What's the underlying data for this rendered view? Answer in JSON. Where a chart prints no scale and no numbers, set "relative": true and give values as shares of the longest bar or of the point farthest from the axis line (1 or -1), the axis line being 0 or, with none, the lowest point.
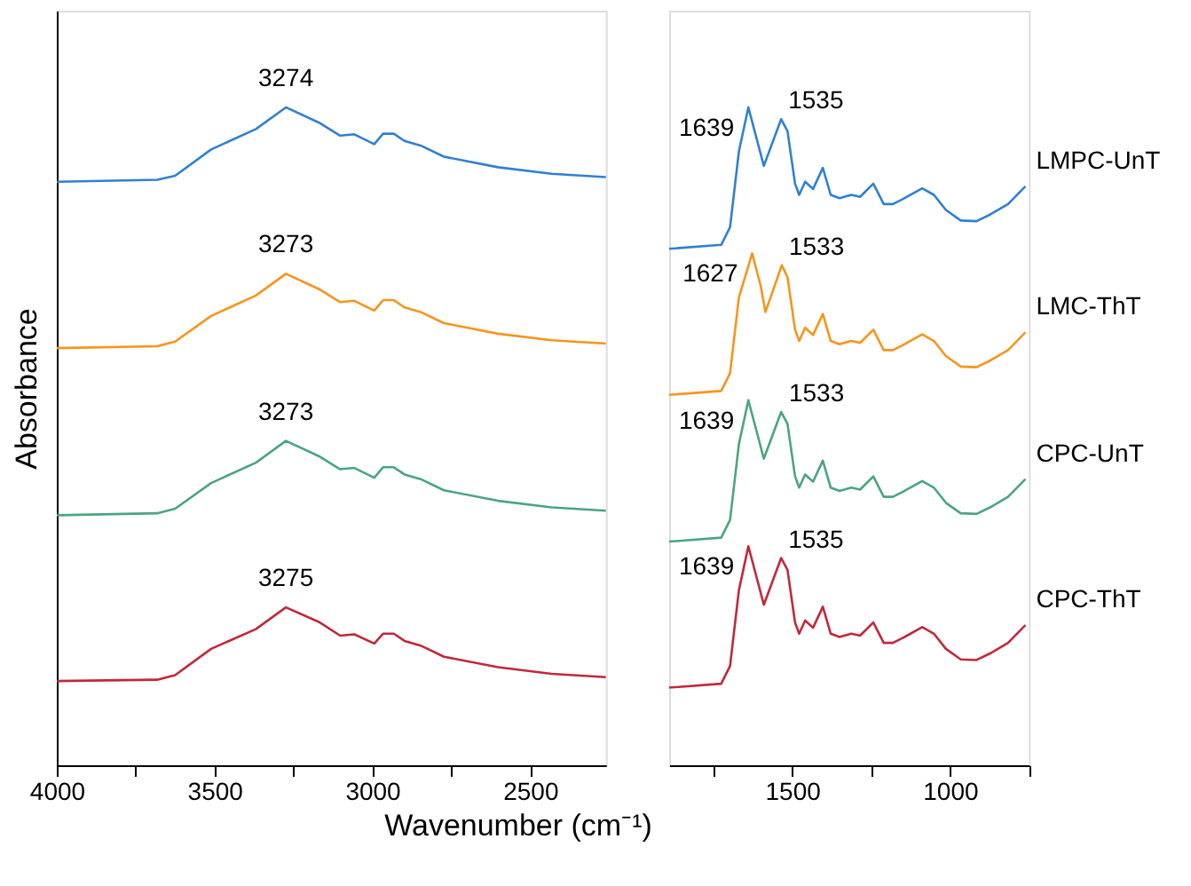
{
  "chart_data": [
    {
      "type": "line",
      "relative": true,
      "xlabel": "Wavenumber (cm⁻¹)",
      "ylabel": "Absorbance",
      "x": [
        4000,
        3682,
        3625,
        3511,
        3369,
        3274,
        3170,
        3102,
        3057,
        2994,
        2966,
        2932,
        2898,
        2847,
        2773,
        2602,
        2432,
        2260
      ],
      "xlim": [
        4000,
        2260
      ],
      "xticks": [
        4000,
        {
          "value": 3750,
          "label": null
        },
        3500,
        {
          "value": 3250,
          "label": null
        },
        3000,
        {
          "value": 2750,
          "label": null
        },
        2500
      ],
      "grid": false,
      "legend": false,
      "marker": "none",
      "line_style": "solid",
      "series": [
        {
          "color": "#2f80d1",
          "values": [
            0.887,
            0.89,
            0.896,
            0.936,
            0.967,
            1.0,
            0.977,
            0.957,
            0.959,
            0.944,
            0.96,
            0.96,
            0.949,
            0.942,
            0.925,
            0.909,
            0.899,
            0.894
          ]
        },
        {
          "color": "#f7941d",
          "values": [
            0.634,
            0.637,
            0.644,
            0.683,
            0.714,
            0.747,
            0.724,
            0.704,
            0.706,
            0.691,
            0.707,
            0.707,
            0.696,
            0.689,
            0.672,
            0.656,
            0.646,
            0.641
          ]
        },
        {
          "color": "#4aa57f",
          "values": [
            0.38,
            0.383,
            0.39,
            0.429,
            0.46,
            0.493,
            0.47,
            0.45,
            0.452,
            0.437,
            0.453,
            0.453,
            0.442,
            0.435,
            0.418,
            0.402,
            0.392,
            0.387
          ]
        },
        {
          "color": "#c0283c",
          "values": [
            0.128,
            0.13,
            0.137,
            0.177,
            0.207,
            0.24,
            0.218,
            0.197,
            0.199,
            0.185,
            0.2,
            0.2,
            0.189,
            0.182,
            0.165,
            0.149,
            0.139,
            0.134
          ]
        }
      ],
      "annotations": [
        {
          "text": "3274",
          "x": 3274,
          "y": 1.0
        },
        {
          "text": "3273",
          "x": 3274,
          "y": 0.747
        },
        {
          "text": "3273",
          "x": 3274,
          "y": 0.493
        },
        {
          "text": "3275",
          "x": 3274,
          "y": 0.24
        }
      ]
    },
    {
      "type": "line",
      "relative": true,
      "x": [
        1890,
        1725,
        1697,
        1669,
        1639,
        1612,
        1590,
        1566,
        1535,
        1515,
        1491,
        1478,
        1459,
        1434,
        1403,
        1378,
        1350,
        1313,
        1285,
        1243,
        1210,
        1181,
        1144,
        1088,
        1051,
        1013,
        966,
        916,
        873,
        816,
        761
      ],
      "xlim": [
        1890,
        750
      ],
      "xticks": [
        {
          "value": 1750,
          "label": null
        },
        1500,
        {
          "value": 1250,
          "label": null
        },
        1000,
        {
          "value": 750,
          "label": null
        }
      ],
      "grid": false,
      "legend": false,
      "marker": "none",
      "line_style": "solid",
      "series": [
        {
          "name": "LMPC-UnT",
          "color": "#2f80d1",
          "values": [
            0.785,
            0.791,
            0.818,
            0.933,
            1.0,
            0.951,
            0.911,
            0.942,
            0.982,
            0.964,
            0.884,
            0.867,
            0.887,
            0.876,
            0.908,
            0.867,
            0.862,
            0.867,
            0.864,
            0.884,
            0.853,
            0.853,
            0.862,
            0.877,
            0.867,
            0.844,
            0.828,
            0.827,
            0.837,
            0.853,
            0.88
          ]
        },
        {
          "name": "LMC-ThT",
          "color": "#f7941d",
          "x": [
            1890,
            1725,
            1697,
            1669,
            1627,
            1600,
            1585,
            1562,
            1533,
            1515,
            1491,
            1478,
            1459,
            1434,
            1403,
            1378,
            1350,
            1313,
            1285,
            1243,
            1210,
            1181,
            1144,
            1088,
            1051,
            1013,
            966,
            916,
            873,
            816,
            761
          ],
          "values": [
            0.563,
            0.569,
            0.596,
            0.711,
            0.778,
            0.729,
            0.689,
            0.72,
            0.76,
            0.742,
            0.662,
            0.645,
            0.665,
            0.654,
            0.686,
            0.645,
            0.64,
            0.645,
            0.642,
            0.662,
            0.631,
            0.631,
            0.64,
            0.655,
            0.645,
            0.622,
            0.606,
            0.605,
            0.615,
            0.631,
            0.658
          ]
        },
        {
          "name": "CPC-UnT",
          "color": "#4aa57f",
          "values": [
            0.34,
            0.346,
            0.373,
            0.488,
            0.555,
            0.506,
            0.466,
            0.497,
            0.537,
            0.519,
            0.439,
            0.422,
            0.442,
            0.431,
            0.463,
            0.422,
            0.417,
            0.422,
            0.419,
            0.439,
            0.408,
            0.408,
            0.417,
            0.432,
            0.422,
            0.399,
            0.383,
            0.382,
            0.392,
            0.408,
            0.435
          ]
        },
        {
          "name": "CPC-ThT",
          "color": "#c0283c",
          "values": [
            0.118,
            0.124,
            0.151,
            0.266,
            0.333,
            0.284,
            0.244,
            0.275,
            0.315,
            0.297,
            0.217,
            0.2,
            0.22,
            0.209,
            0.241,
            0.2,
            0.195,
            0.2,
            0.197,
            0.217,
            0.186,
            0.186,
            0.195,
            0.21,
            0.2,
            0.177,
            0.161,
            0.16,
            0.17,
            0.186,
            0.213
          ]
        }
      ],
      "annotations": [
        {
          "text": "1639",
          "x": 1639,
          "y": 1.0
        },
        {
          "text": "1535",
          "x": 1535,
          "y": 0.982
        },
        {
          "text": "1627",
          "x": 1627,
          "y": 0.778
        },
        {
          "text": "1533",
          "x": 1533,
          "y": 0.76
        },
        {
          "text": "1639",
          "x": 1639,
          "y": 0.555
        },
        {
          "text": "1533",
          "x": 1533,
          "y": 0.537
        },
        {
          "text": "1639",
          "x": 1639,
          "y": 0.333
        },
        {
          "text": "1535",
          "x": 1535,
          "y": 0.315
        }
      ]
    }
  ]
}
